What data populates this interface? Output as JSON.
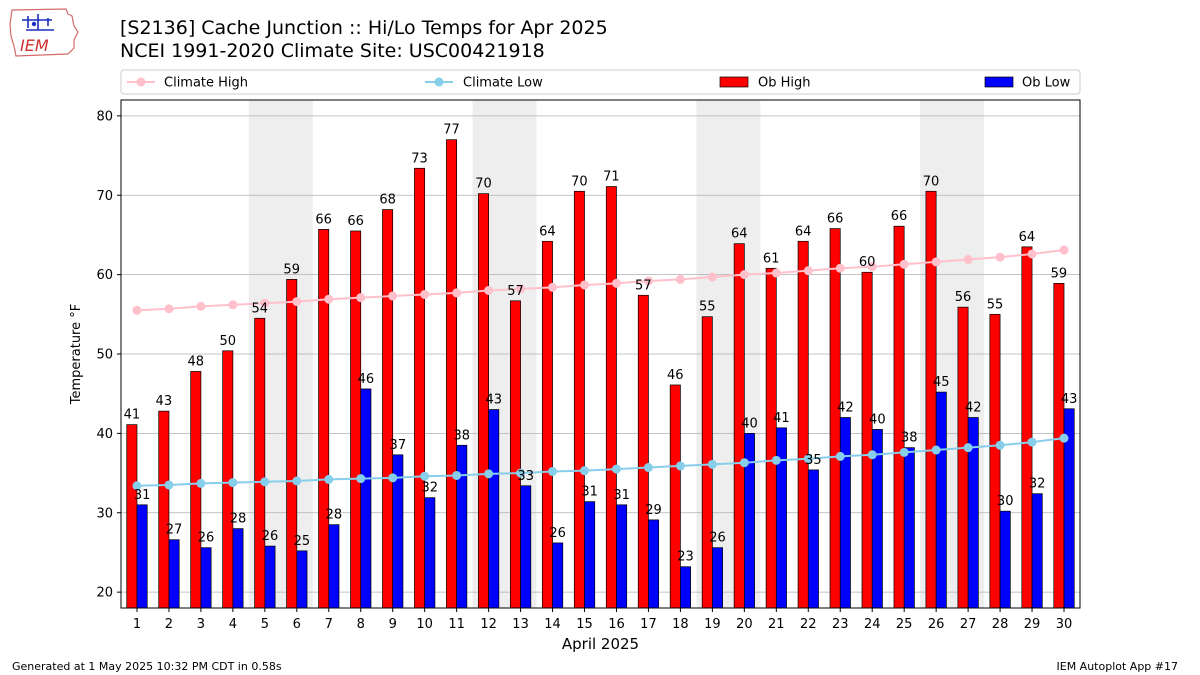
{
  "header": {
    "title_line1": "[S2136] Cache Junction :: Hi/Lo Temps for Apr 2025",
    "title_line2": "NCEI 1991-2020 Climate Site: USC00421918",
    "logo_text": "IEM"
  },
  "footer": {
    "generated": "Generated at 1 May 2025 10:32 PM CDT in 0.58s",
    "app": "IEM Autoplot App #17"
  },
  "colors": {
    "ob_high": "#ff0000",
    "ob_low": "#0000ff",
    "climate_high": "#ffc0cb",
    "climate_low": "#87ceeb",
    "weekend_shade": "#eeeeee",
    "grid": "#b0b0b0"
  },
  "chart_data": {
    "type": "bar",
    "xlabel": "April 2025",
    "ylabel": "Temperature °F",
    "ylim": [
      18,
      82
    ],
    "yticks": [
      20,
      30,
      40,
      50,
      60,
      70,
      80
    ],
    "grid": true,
    "legend_placement": "top",
    "categories": [
      "1",
      "2",
      "3",
      "4",
      "5",
      "6",
      "7",
      "8",
      "9",
      "10",
      "11",
      "12",
      "13",
      "14",
      "15",
      "16",
      "17",
      "18",
      "19",
      "20",
      "21",
      "22",
      "23",
      "24",
      "25",
      "26",
      "27",
      "28",
      "29",
      "30"
    ],
    "shaded_weekend_days": [
      [
        5,
        6
      ],
      [
        12,
        13
      ],
      [
        19,
        20
      ],
      [
        26,
        27
      ]
    ],
    "bar_series": [
      {
        "name": "Ob High",
        "labels": [
          "41",
          "43",
          "48",
          "50",
          "54",
          "59",
          "66",
          "66",
          "68",
          "73",
          "77",
          "70",
          "57",
          "64",
          "70",
          "71",
          "57",
          "46",
          "55",
          "64",
          "61",
          "64",
          "66",
          "60",
          "66",
          "70",
          "56",
          "55",
          "64",
          "59"
        ],
        "values": [
          41.1,
          42.8,
          47.8,
          50.4,
          54.5,
          59.4,
          65.7,
          65.5,
          68.2,
          73.4,
          77,
          70.2,
          56.7,
          64.2,
          70.5,
          71.1,
          57.4,
          46.1,
          54.7,
          63.9,
          60.8,
          64.2,
          65.8,
          60.3,
          66.1,
          70.5,
          55.9,
          55,
          63.5,
          58.9
        ]
      },
      {
        "name": "Ob Low",
        "labels": [
          "31",
          "27",
          "26",
          "28",
          "26",
          "25",
          "28",
          "46",
          "37",
          "32",
          "38",
          "43",
          "33",
          "26",
          "31",
          "31",
          "29",
          "23",
          "26",
          "40",
          "41",
          "35",
          "42",
          "40",
          "38",
          "45",
          "42",
          "30",
          "32",
          "43"
        ],
        "values": [
          31,
          26.6,
          25.6,
          28,
          25.8,
          25.2,
          28.5,
          45.6,
          37.3,
          31.9,
          38.5,
          43,
          33.4,
          26.2,
          31.4,
          31,
          29.1,
          23.2,
          25.6,
          40,
          40.7,
          35.4,
          42,
          40.5,
          38.2,
          45.2,
          42,
          30.2,
          32.4,
          43.1
        ]
      }
    ],
    "line_series": [
      {
        "name": "Climate High",
        "values": [
          55.5,
          55.7,
          56,
          56.2,
          56.4,
          56.6,
          56.9,
          57.1,
          57.3,
          57.5,
          57.7,
          58,
          58.2,
          58.4,
          58.7,
          58.9,
          59.2,
          59.4,
          59.7,
          60,
          60.2,
          60.5,
          60.8,
          61,
          61.3,
          61.6,
          61.9,
          62.2,
          62.6,
          63.1
        ]
      },
      {
        "name": "Climate Low",
        "values": [
          33.4,
          33.5,
          33.7,
          33.8,
          33.9,
          34,
          34.2,
          34.3,
          34.4,
          34.6,
          34.7,
          34.9,
          35,
          35.2,
          35.3,
          35.5,
          35.7,
          35.9,
          36.1,
          36.3,
          36.6,
          36.8,
          37.1,
          37.3,
          37.6,
          37.9,
          38.2,
          38.5,
          38.9,
          39.4
        ]
      }
    ]
  }
}
